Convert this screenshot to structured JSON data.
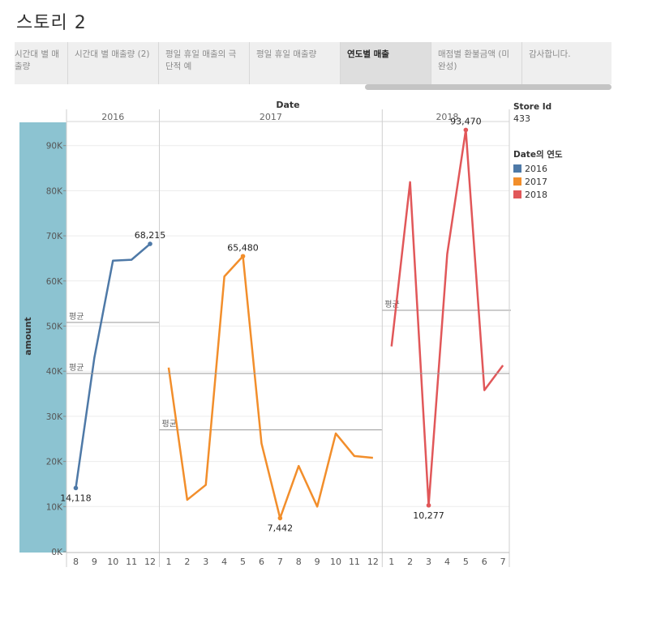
{
  "story": {
    "title": "스토리 2"
  },
  "tabs": [
    {
      "label": "시간대 별 매출량",
      "active": false
    },
    {
      "label": "시간대 별 매출량 (2)",
      "active": false
    },
    {
      "label": "평일 휴일 매출의 극단적 예",
      "active": false
    },
    {
      "label": "평일 휴일 매출량",
      "active": false
    },
    {
      "label": "연도별 매출",
      "active": true
    },
    {
      "label": "매점별 환불금액 (미완성)",
      "active": false
    },
    {
      "label": "감사합니다.",
      "active": false
    }
  ],
  "filters": {
    "store_header": "Store Id",
    "store_value": "433",
    "legend_header": "Date의 연도",
    "legend_items": [
      {
        "label": "2016",
        "color": "#4e79a7"
      },
      {
        "label": "2017",
        "color": "#f28e2b"
      },
      {
        "label": "2018",
        "color": "#e15759"
      }
    ]
  },
  "chart_data": {
    "type": "line",
    "xlabel": "Date",
    "ylabel": "amount",
    "ylim": [
      0,
      100000
    ],
    "yticks": [
      0,
      10000,
      20000,
      30000,
      40000,
      50000,
      60000,
      70000,
      80000,
      90000
    ],
    "ytick_labels": [
      "0K",
      "10K",
      "20K",
      "30K",
      "40K",
      "50K",
      "60K",
      "70K",
      "80K",
      "90K"
    ],
    "reference_label": "평균",
    "overall_average": 39500,
    "panels": [
      {
        "year": "2016",
        "color": "#4e79a7",
        "months": [
          "8",
          "9",
          "10",
          "11",
          "12"
        ],
        "values": [
          14118,
          43000,
          64500,
          64700,
          68215
        ],
        "average": 50800,
        "labels": [
          {
            "index": 0,
            "text": "14,118",
            "pos": "below"
          },
          {
            "index": 4,
            "text": "68,215",
            "pos": "above"
          }
        ]
      },
      {
        "year": "2017",
        "color": "#f28e2b",
        "months": [
          "1",
          "2",
          "3",
          "4",
          "5",
          "6",
          "7",
          "8",
          "9",
          "10",
          "11",
          "12"
        ],
        "values": [
          40800,
          11500,
          14800,
          61000,
          65480,
          24000,
          7442,
          19000,
          10000,
          26200,
          21200,
          20800
        ],
        "average": 27000,
        "labels": [
          {
            "index": 4,
            "text": "65,480",
            "pos": "above"
          },
          {
            "index": 6,
            "text": "7,442",
            "pos": "below"
          }
        ]
      },
      {
        "year": "2018",
        "color": "#e15759",
        "months": [
          "1",
          "2",
          "3",
          "4",
          "5",
          "6",
          "7"
        ],
        "values": [
          45500,
          81900,
          10277,
          66000,
          93470,
          35800,
          41300
        ],
        "average": 53500,
        "labels": [
          {
            "index": 4,
            "text": "93,470",
            "pos": "above"
          },
          {
            "index": 2,
            "text": "10,277",
            "pos": "below"
          }
        ]
      }
    ]
  }
}
